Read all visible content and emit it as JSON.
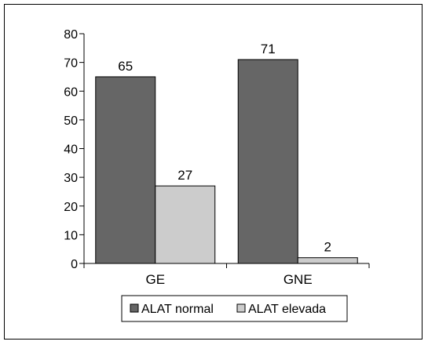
{
  "chart_data": {
    "type": "bar",
    "categories": [
      "GE",
      "GNE"
    ],
    "series": [
      {
        "name": "ALAT normal",
        "values": [
          65,
          71
        ],
        "color": "#666666"
      },
      {
        "name": "ALAT elevada",
        "values": [
          27,
          2
        ],
        "color": "#cccccc"
      }
    ],
    "ylim": [
      0,
      80
    ],
    "yticks": [
      0,
      10,
      20,
      30,
      40,
      50,
      60,
      70,
      80
    ],
    "title": "",
    "xlabel": "",
    "ylabel": "",
    "grid": false,
    "legend": "bottom-center"
  }
}
